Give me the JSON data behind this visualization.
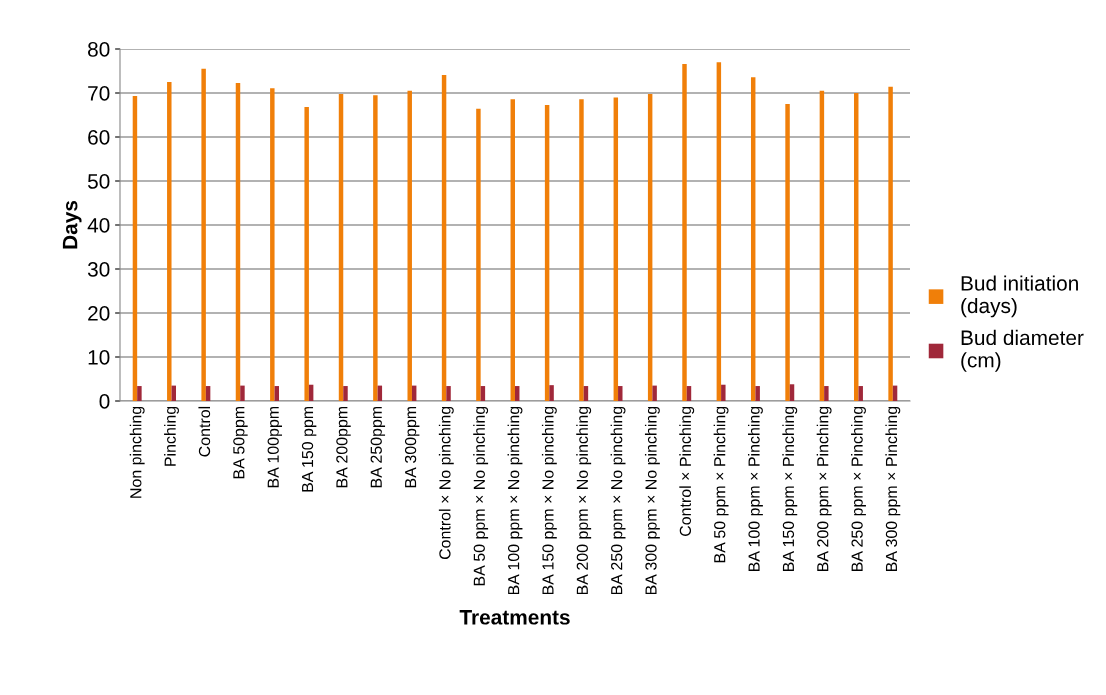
{
  "chart_data": {
    "type": "bar",
    "xlabel": "Treatments",
    "ylabel": "Days",
    "categories": [
      "Non pinching",
      "Pinching",
      "Control",
      "BA 50ppm",
      "BA 100ppm",
      "BA 150 ppm",
      "BA 200ppm",
      "BA 250ppm",
      "BA 300ppm",
      "Control × No pinching",
      "BA 50 ppm × No pinching",
      "BA 100 ppm × No pinching",
      "BA 150 ppm × No pinching",
      "BA 200 ppm × No pinching",
      "BA 250 ppm × No pinching",
      "BA 300 ppm × No pinching",
      "Control × Pinching",
      "BA 50 ppm × Pinching",
      "BA 100 ppm × Pinching",
      "BA 150 ppm × Pinching",
      "BA 200 ppm × Pinching",
      "BA 250 ppm × Pinching",
      "BA 300 ppm × Pinching"
    ],
    "series": [
      {
        "name": "Bud initiation (days)",
        "color": "#f07f09",
        "values": [
          69.3,
          72.5,
          75.5,
          72.3,
          71.1,
          66.8,
          69.8,
          69.5,
          70.5,
          74.1,
          66.4,
          68.6,
          67.3,
          68.6,
          69.0,
          69.8,
          76.6,
          77.0,
          73.6,
          67.5,
          70.5,
          70.0,
          71.4
        ]
      },
      {
        "name": "Bud diameter (cm)",
        "color": "#a0283a",
        "values": [
          3.4,
          3.5,
          3.4,
          3.5,
          3.4,
          3.7,
          3.4,
          3.5,
          3.5,
          3.4,
          3.4,
          3.4,
          3.6,
          3.4,
          3.4,
          3.5,
          3.4,
          3.7,
          3.4,
          3.8,
          3.4,
          3.4,
          3.5
        ]
      }
    ],
    "ylim": [
      0,
      80
    ],
    "yticks": [
      0,
      10,
      20,
      30,
      40,
      50,
      60,
      70,
      80
    ],
    "grid": "y",
    "legend": "right"
  }
}
